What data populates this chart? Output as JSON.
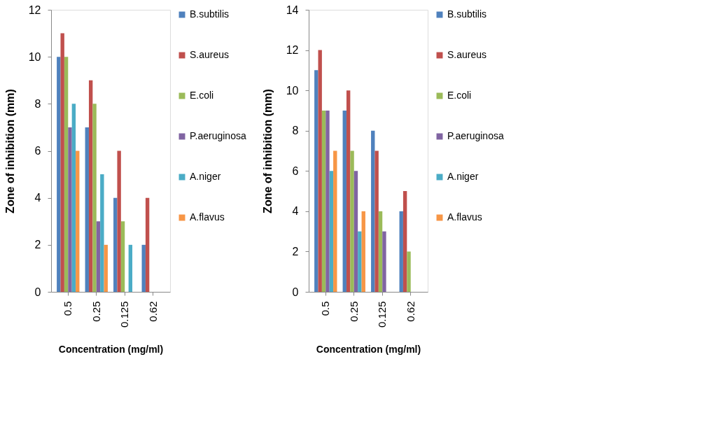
{
  "chart_data": [
    {
      "type": "bar",
      "categories": [
        "0.5",
        "0.25",
        "0.125",
        "0.62"
      ],
      "xlabel": "Concentration (mg/ml)",
      "ylabel": "Zone of inhibition (mm)",
      "ylim": [
        0,
        12
      ],
      "yticks": [
        0,
        2,
        4,
        6,
        8,
        10,
        12
      ],
      "grid": false,
      "legend": "right",
      "series": [
        {
          "name": "B.subtilis",
          "color": "#4f81bd",
          "values": [
            10,
            7,
            4,
            2
          ]
        },
        {
          "name": "S.aureus",
          "color": "#c0504d",
          "values": [
            11,
            9,
            6,
            4
          ]
        },
        {
          "name": "E.coli",
          "color": "#9bbb59",
          "values": [
            10,
            8,
            3,
            0
          ]
        },
        {
          "name": "P.aeruginosa",
          "color": "#8064a2",
          "values": [
            7,
            3,
            0,
            0
          ]
        },
        {
          "name": "A.niger",
          "color": "#4bacc6",
          "values": [
            8,
            5,
            2,
            0
          ]
        },
        {
          "name": "A.flavus",
          "color": "#f79646",
          "values": [
            6,
            2,
            0,
            0
          ]
        }
      ]
    },
    {
      "type": "bar",
      "categories": [
        "0.5",
        "0.25",
        "0.125",
        "0.62"
      ],
      "xlabel": "Concentration (mg/ml)",
      "ylabel": "Zone of inhibition (mm)",
      "ylim": [
        0,
        14
      ],
      "yticks": [
        0,
        2,
        4,
        6,
        8,
        10,
        12,
        14
      ],
      "grid": false,
      "legend": "right",
      "series": [
        {
          "name": "B.subtilis",
          "color": "#4f81bd",
          "values": [
            11,
            9,
            8,
            4
          ]
        },
        {
          "name": "S.aureus",
          "color": "#c0504d",
          "values": [
            12,
            10,
            7,
            5
          ]
        },
        {
          "name": "E.coli",
          "color": "#9bbb59",
          "values": [
            9,
            7,
            4,
            2
          ]
        },
        {
          "name": "P.aeruginosa",
          "color": "#8064a2",
          "values": [
            9,
            6,
            3,
            0
          ]
        },
        {
          "name": "A.niger",
          "color": "#4bacc6",
          "values": [
            6,
            3,
            0,
            0
          ]
        },
        {
          "name": "A.flavus",
          "color": "#f79646",
          "values": [
            7,
            4,
            0,
            0
          ]
        }
      ]
    }
  ]
}
